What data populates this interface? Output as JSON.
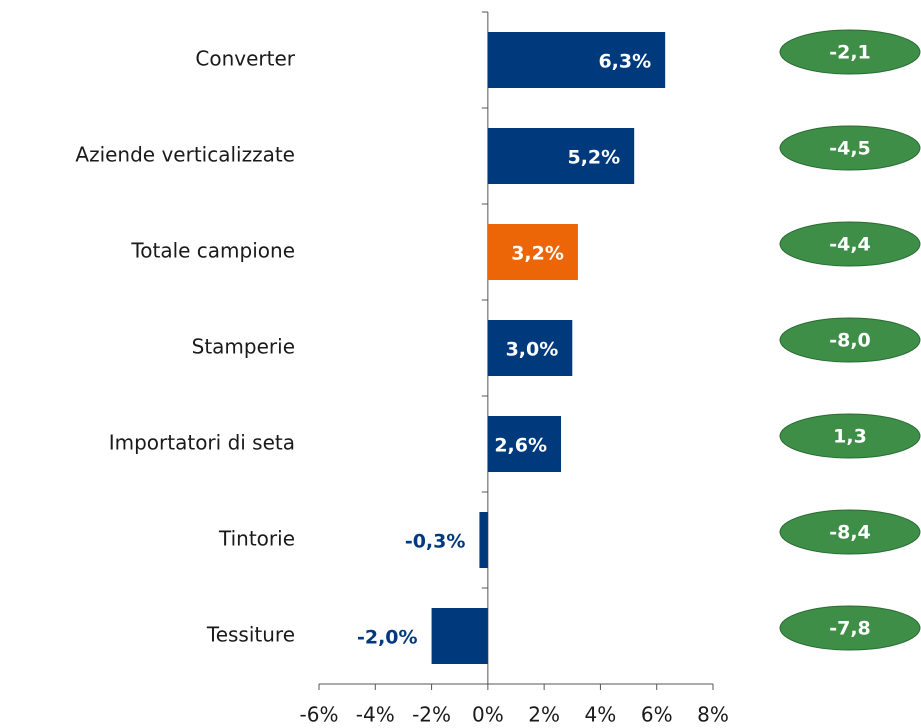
{
  "chart_data": {
    "type": "bar",
    "orientation": "horizontal",
    "categories": [
      "Converter",
      "Aziende verticalizzate",
      "Totale campione",
      "Stamperie",
      "Importatori di seta",
      "Tintorie",
      "Tessiture"
    ],
    "values": [
      6.3,
      5.2,
      3.2,
      3.0,
      2.6,
      -0.3,
      -2.0
    ],
    "value_labels": [
      "6,3%",
      "5,2%",
      "3,2%",
      "3,0%",
      "2,6%",
      "-0,3%",
      "-2,0%"
    ],
    "colors": [
      "#003a7d",
      "#003a7d",
      "#ec6608",
      "#003a7d",
      "#003a7d",
      "#003a7d",
      "#003a7d"
    ],
    "side_values": [
      -2.1,
      -4.5,
      -4.4,
      -8.0,
      1.3,
      -8.4,
      -7.8
    ],
    "side_value_labels": [
      "-2,1",
      "-4,5",
      "-4,4",
      "-8,0",
      "1,3",
      "-8,4",
      "-7,8"
    ],
    "side_color": "#3e8e47",
    "xlim": [
      -6,
      8
    ],
    "xticks": [
      {
        "value": -6,
        "label": "-6%"
      },
      {
        "value": -4,
        "label": "-4%"
      },
      {
        "value": -2,
        "label": "-2%"
      },
      {
        "value": 0,
        "label": "0%"
      },
      {
        "value": 2,
        "label": "2%"
      },
      {
        "value": 4,
        "label": "4%"
      },
      {
        "value": 6,
        "label": "6%"
      },
      {
        "value": 8,
        "label": "8%"
      }
    ]
  }
}
